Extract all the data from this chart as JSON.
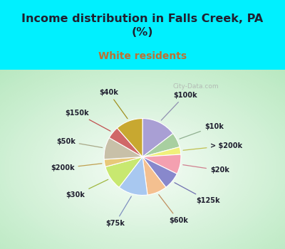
{
  "title": "Income distribution in Falls Creek, PA\n(%)",
  "subtitle": "White residents",
  "labels": [
    "$100k",
    "$10k",
    "> $200k",
    "$20k",
    "$125k",
    "$60k",
    "$75k",
    "$30k",
    "$200k",
    "$50k",
    "$150k",
    "$40k"
  ],
  "values": [
    14,
    6,
    3,
    8,
    7,
    8,
    12,
    10,
    3,
    9,
    5,
    11
  ],
  "colors": [
    "#a99fd4",
    "#a8cfa0",
    "#f0f07a",
    "#f4a0b0",
    "#8888cc",
    "#f4c090",
    "#a8c8f0",
    "#c8e870",
    "#e8c878",
    "#c8c0a8",
    "#d06868",
    "#c8a830"
  ],
  "bg_cyan": "#00f0ff",
  "chart_bg_outer": "#b8e8c0",
  "chart_bg_inner": "#f0f8f0",
  "title_color": "#202030",
  "subtitle_color": "#c07030",
  "watermark": "City-Data.com",
  "label_color": "#202030",
  "line_colors": [
    "#9090b0",
    "#90b090",
    "#c0c050",
    "#d08090",
    "#7070b0",
    "#c09060",
    "#8090c0",
    "#a0b840",
    "#c0a050",
    "#a8a888",
    "#c05050",
    "#a09020"
  ],
  "startangle": 90,
  "label_r": 1.22,
  "wedge_r": 0.68
}
